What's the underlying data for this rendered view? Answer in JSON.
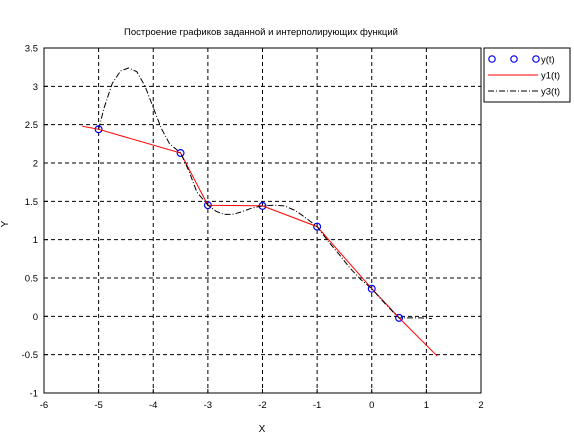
{
  "chart_data": {
    "type": "line",
    "title": "Построение графиков заданной и интерполирующих функций",
    "xlabel": "X",
    "ylabel": "Y",
    "xlim": [
      -6,
      2
    ],
    "ylim": [
      -1,
      3.5
    ],
    "x_ticks": [
      "-6",
      "-5",
      "-4",
      "-3",
      "-2",
      "-1",
      "0",
      "1",
      "2"
    ],
    "y_ticks": [
      "-1",
      "-0.5",
      "0",
      "0.5",
      "1",
      "1.5",
      "2",
      "2.5",
      "3",
      "3.5"
    ],
    "grid": true,
    "legend_position": "top-right",
    "series": [
      {
        "name": "y(t)",
        "style": "markers",
        "color": "#0000ff",
        "x": [
          -5,
          -3.5,
          -3,
          -2,
          -1,
          0,
          0.5
        ],
        "y": [
          2.44,
          2.13,
          1.45,
          1.44,
          1.17,
          0.36,
          -0.02
        ]
      },
      {
        "name": "y1(t)",
        "style": "solid",
        "color": "#ff0000",
        "x": [
          -5.3,
          -5,
          -3.5,
          -3,
          -2,
          -1,
          0,
          0.5,
          1.2
        ],
        "y": [
          2.48,
          2.44,
          2.13,
          1.45,
          1.44,
          1.17,
          0.36,
          -0.02,
          -0.52
        ]
      },
      {
        "name": "y3(t)",
        "style": "dashdot",
        "color": "#000000",
        "x": [
          -5,
          -4.9,
          -4.75,
          -4.6,
          -4.45,
          -4.3,
          -4.15,
          -4,
          -3.85,
          -3.7,
          -3.5,
          -3.35,
          -3.2,
          -3,
          -2.85,
          -2.7,
          -2.55,
          -2.4,
          -2.2,
          -2,
          -1.8,
          -1.6,
          -1.4,
          -1.2,
          -1,
          -0.8,
          -0.6,
          -0.4,
          -0.2,
          0,
          0.2,
          0.4,
          0.5,
          0.7,
          0.9,
          1.1
        ],
        "y": [
          2.44,
          2.72,
          3.04,
          3.2,
          3.24,
          3.19,
          3.0,
          2.72,
          2.45,
          2.25,
          2.13,
          1.9,
          1.62,
          1.45,
          1.37,
          1.33,
          1.33,
          1.36,
          1.41,
          1.44,
          1.45,
          1.44,
          1.38,
          1.28,
          1.17,
          0.98,
          0.81,
          0.63,
          0.48,
          0.36,
          0.2,
          0.05,
          -0.02,
          -0.02,
          -0.02,
          -0.03
        ]
      }
    ]
  }
}
